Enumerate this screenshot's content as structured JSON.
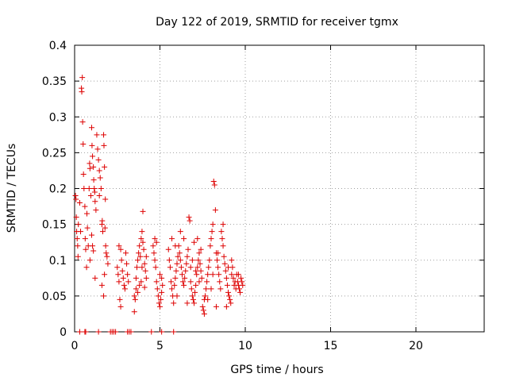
{
  "chart_data": {
    "type": "scatter",
    "title": "Day 122 of 2019, SRMTID for receiver tgmx",
    "xlabel": "GPS time / hours",
    "ylabel": "SRMTID / TECUs",
    "xlim": [
      0,
      24
    ],
    "ylim": [
      0,
      0.4
    ],
    "xticks": [
      0,
      5,
      10,
      15,
      20
    ],
    "yticks": [
      0,
      0.05,
      0.1,
      0.15,
      0.2,
      0.25,
      0.3,
      0.35,
      0.4
    ],
    "xtick_labels": [
      "0",
      "5",
      "10",
      "15",
      "20"
    ],
    "ytick_labels": [
      "0",
      "0.05",
      "0.1",
      "0.15",
      "0.2",
      "0.25",
      "0.3",
      "0.35",
      "0.4"
    ],
    "grid": true,
    "marker": "plus",
    "color": "#dd0000",
    "series": [
      {
        "name": "SRMTID",
        "points": [
          [
            0.05,
            0.19
          ],
          [
            0.08,
            0.185
          ],
          [
            0.1,
            0.16
          ],
          [
            0.12,
            0.14
          ],
          [
            0.15,
            0.13
          ],
          [
            0.18,
            0.12
          ],
          [
            0.2,
            0.105
          ],
          [
            0.22,
            0.15
          ],
          [
            0.3,
            0.18
          ],
          [
            0.35,
            0.14
          ],
          [
            0.4,
            0.34
          ],
          [
            0.42,
            0.335
          ],
          [
            0.45,
            0.355
          ],
          [
            0.47,
            0.293
          ],
          [
            0.5,
            0.262
          ],
          [
            0.52,
            0.22
          ],
          [
            0.55,
            0.2
          ],
          [
            0.6,
            0.175
          ],
          [
            0.62,
            0.13
          ],
          [
            0.65,
            0.115
          ],
          [
            0.7,
            0.09
          ],
          [
            0.72,
            0.165
          ],
          [
            0.75,
            0.145
          ],
          [
            0.8,
            0.12
          ],
          [
            0.85,
            0.2
          ],
          [
            0.88,
            0.235
          ],
          [
            0.9,
            0.228
          ],
          [
            0.95,
            0.19
          ],
          [
            1.0,
            0.285
          ],
          [
            1.02,
            0.26
          ],
          [
            1.05,
            0.245
          ],
          [
            1.1,
            0.23
          ],
          [
            1.12,
            0.212
          ],
          [
            1.15,
            0.2
          ],
          [
            1.18,
            0.195
          ],
          [
            1.2,
            0.182
          ],
          [
            1.25,
            0.17
          ],
          [
            1.3,
            0.275
          ],
          [
            1.35,
            0.255
          ],
          [
            1.4,
            0.24
          ],
          [
            1.45,
            0.225
          ],
          [
            1.5,
            0.215
          ],
          [
            1.55,
            0.2
          ],
          [
            1.6,
            0.15
          ],
          [
            1.65,
            0.14
          ],
          [
            1.7,
            0.275
          ],
          [
            1.72,
            0.26
          ],
          [
            1.75,
            0.23
          ],
          [
            1.8,
            0.185
          ],
          [
            1.82,
            0.12
          ],
          [
            1.85,
            0.11
          ],
          [
            1.9,
            0.105
          ],
          [
            1.95,
            0.095
          ],
          [
            1.0,
            0.135
          ],
          [
            1.05,
            0.12
          ],
          [
            1.1,
            0.113
          ],
          [
            0.9,
            0.1
          ],
          [
            1.2,
            0.075
          ],
          [
            1.6,
            0.065
          ],
          [
            1.7,
            0.05
          ],
          [
            1.75,
            0.08
          ],
          [
            1.62,
            0.155
          ],
          [
            1.78,
            0.145
          ],
          [
            1.45,
            0.19
          ],
          [
            2.5,
            0.09
          ],
          [
            2.55,
            0.08
          ],
          [
            2.6,
            0.07
          ],
          [
            2.65,
            0.045
          ],
          [
            2.7,
            0.035
          ],
          [
            2.75,
            0.1
          ],
          [
            2.8,
            0.085
          ],
          [
            2.85,
            0.075
          ],
          [
            2.9,
            0.065
          ],
          [
            2.95,
            0.06
          ],
          [
            3.0,
            0.11
          ],
          [
            3.05,
            0.095
          ],
          [
            3.1,
            0.08
          ],
          [
            3.15,
            0.07
          ],
          [
            2.6,
            0.12
          ],
          [
            2.7,
            0.115
          ],
          [
            3.5,
            0.05
          ],
          [
            3.55,
            0.045
          ],
          [
            3.6,
            0.06
          ],
          [
            3.65,
            0.09
          ],
          [
            3.7,
            0.1
          ],
          [
            3.75,
            0.11
          ],
          [
            3.8,
            0.12
          ],
          [
            3.85,
            0.105
          ],
          [
            3.9,
            0.13
          ],
          [
            3.95,
            0.14
          ],
          [
            4.0,
            0.125
          ],
          [
            4.05,
            0.115
          ],
          [
            4.1,
            0.095
          ],
          [
            4.15,
            0.085
          ],
          [
            4.2,
            0.075
          ],
          [
            3.8,
            0.065
          ],
          [
            3.9,
            0.07
          ],
          [
            4.0,
            0.168
          ],
          [
            3.5,
            0.028
          ],
          [
            3.7,
            0.055
          ],
          [
            4.1,
            0.062
          ],
          [
            3.6,
            0.075
          ],
          [
            4.2,
            0.105
          ],
          [
            3.95,
            0.09
          ],
          [
            4.6,
            0.12
          ],
          [
            4.65,
            0.11
          ],
          [
            4.7,
            0.1
          ],
          [
            4.75,
            0.09
          ],
          [
            4.8,
            0.07
          ],
          [
            4.85,
            0.06
          ],
          [
            4.9,
            0.05
          ],
          [
            4.95,
            0.04
          ],
          [
            5.0,
            0.035
          ],
          [
            5.05,
            0.045
          ],
          [
            5.1,
            0.055
          ],
          [
            5.15,
            0.065
          ],
          [
            4.7,
            0.13
          ],
          [
            4.8,
            0.125
          ],
          [
            5.0,
            0.08
          ],
          [
            5.1,
            0.075
          ],
          [
            5.5,
            0.115
          ],
          [
            5.55,
            0.1
          ],
          [
            5.6,
            0.09
          ],
          [
            5.65,
            0.07
          ],
          [
            5.7,
            0.06
          ],
          [
            5.75,
            0.05
          ],
          [
            5.8,
            0.04
          ],
          [
            5.85,
            0.065
          ],
          [
            5.9,
            0.075
          ],
          [
            5.95,
            0.085
          ],
          [
            6.0,
            0.095
          ],
          [
            6.05,
            0.105
          ],
          [
            6.1,
            0.12
          ],
          [
            6.15,
            0.11
          ],
          [
            6.2,
            0.1
          ],
          [
            6.25,
            0.09
          ],
          [
            6.3,
            0.08
          ],
          [
            6.35,
            0.07
          ],
          [
            6.4,
            0.065
          ],
          [
            6.45,
            0.075
          ],
          [
            6.5,
            0.085
          ],
          [
            6.55,
            0.095
          ],
          [
            6.6,
            0.105
          ],
          [
            6.65,
            0.115
          ],
          [
            6.7,
            0.16
          ],
          [
            6.75,
            0.155
          ],
          [
            6.8,
            0.07
          ],
          [
            6.85,
            0.06
          ],
          [
            6.9,
            0.05
          ],
          [
            6.95,
            0.045
          ],
          [
            7.0,
            0.04
          ],
          [
            7.05,
            0.055
          ],
          [
            7.1,
            0.065
          ],
          [
            7.15,
            0.08
          ],
          [
            7.2,
            0.09
          ],
          [
            7.25,
            0.1
          ],
          [
            7.3,
            0.11
          ],
          [
            7.35,
            0.095
          ],
          [
            7.4,
            0.085
          ],
          [
            7.45,
            0.075
          ],
          [
            7.5,
            0.035
          ],
          [
            7.55,
            0.03
          ],
          [
            7.6,
            0.025
          ],
          [
            7.65,
            0.05
          ],
          [
            7.7,
            0.06
          ],
          [
            7.75,
            0.07
          ],
          [
            7.8,
            0.08
          ],
          [
            7.85,
            0.09
          ],
          [
            7.9,
            0.1
          ],
          [
            7.95,
            0.12
          ],
          [
            8.0,
            0.13
          ],
          [
            8.05,
            0.14
          ],
          [
            8.1,
            0.15
          ],
          [
            8.15,
            0.21
          ],
          [
            8.2,
            0.205
          ],
          [
            8.25,
            0.17
          ],
          [
            8.3,
            0.11
          ],
          [
            8.35,
            0.1
          ],
          [
            8.4,
            0.09
          ],
          [
            8.45,
            0.08
          ],
          [
            8.5,
            0.07
          ],
          [
            8.55,
            0.06
          ],
          [
            8.6,
            0.14
          ],
          [
            8.65,
            0.13
          ],
          [
            8.7,
            0.12
          ],
          [
            8.75,
            0.105
          ],
          [
            8.8,
            0.095
          ],
          [
            8.85,
            0.085
          ],
          [
            8.9,
            0.075
          ],
          [
            8.95,
            0.065
          ],
          [
            9.0,
            0.055
          ],
          [
            9.05,
            0.05
          ],
          [
            9.1,
            0.045
          ],
          [
            9.15,
            0.04
          ],
          [
            9.2,
            0.08
          ],
          [
            9.25,
            0.09
          ],
          [
            9.3,
            0.075
          ],
          [
            9.35,
            0.065
          ],
          [
            9.4,
            0.07
          ],
          [
            9.45,
            0.06
          ],
          [
            9.5,
            0.08
          ],
          [
            9.55,
            0.07
          ],
          [
            9.6,
            0.065
          ],
          [
            9.65,
            0.06
          ],
          [
            9.7,
            0.055
          ],
          [
            9.75,
            0.075
          ],
          [
            9.8,
            0.07
          ],
          [
            9.85,
            0.065
          ],
          [
            6.2,
            0.14
          ],
          [
            6.4,
            0.13
          ],
          [
            7.0,
            0.125
          ],
          [
            7.2,
            0.13
          ],
          [
            7.6,
            0.045
          ],
          [
            8.0,
            0.06
          ],
          [
            8.3,
            0.035
          ],
          [
            6.0,
            0.05
          ],
          [
            5.7,
            0.13
          ],
          [
            5.9,
            0.12
          ],
          [
            6.6,
            0.04
          ],
          [
            7.8,
            0.045
          ],
          [
            8.9,
            0.035
          ],
          [
            9.2,
            0.1
          ],
          [
            8.7,
            0.15
          ],
          [
            7.4,
            0.115
          ],
          [
            6.8,
            0.09
          ],
          [
            6.9,
            0.1
          ],
          [
            7.1,
            0.085
          ],
          [
            7.3,
            0.07
          ],
          [
            8.1,
            0.08
          ],
          [
            8.4,
            0.11
          ],
          [
            9.6,
            0.08
          ],
          [
            9.0,
            0.09
          ],
          [
            0.3,
            0.0
          ],
          [
            0.6,
            0.0
          ],
          [
            0.65,
            0.0
          ],
          [
            1.4,
            0.0
          ],
          [
            2.1,
            0.0
          ],
          [
            2.2,
            0.0
          ],
          [
            2.3,
            0.0
          ],
          [
            2.4,
            0.0
          ],
          [
            3.1,
            0.0
          ],
          [
            3.2,
            0.0
          ],
          [
            3.3,
            0.0
          ],
          [
            4.5,
            0.0
          ],
          [
            5.1,
            0.0
          ],
          [
            5.8,
            0.0
          ]
        ]
      }
    ]
  }
}
